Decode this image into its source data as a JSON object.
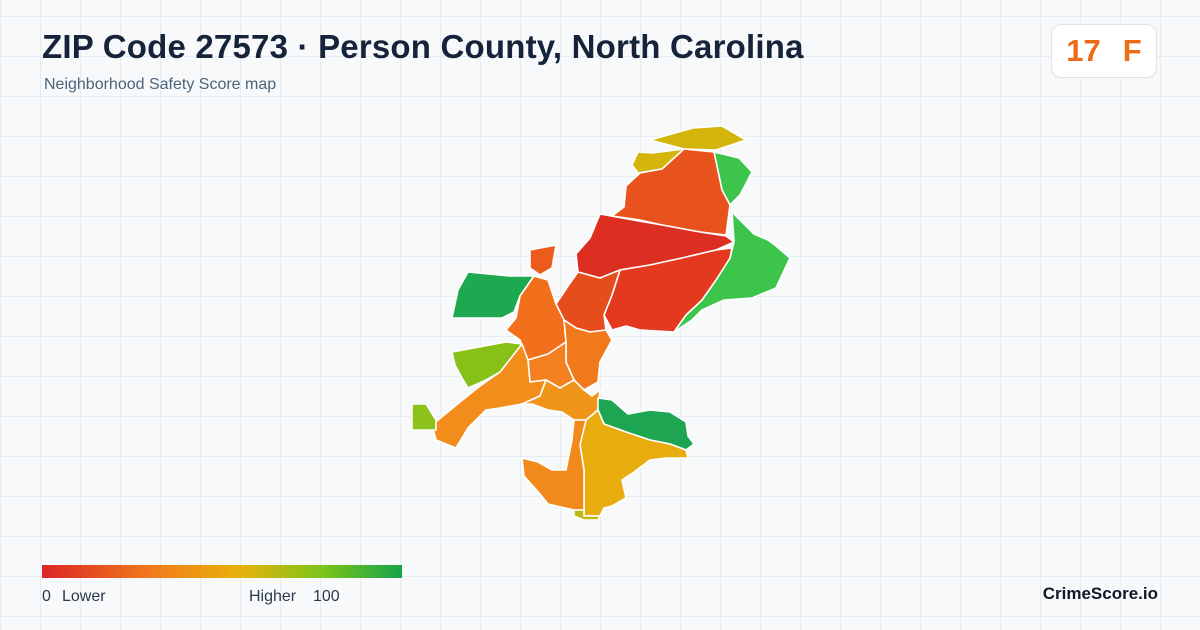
{
  "header": {
    "title": "ZIP Code 27573 · Person County, North Carolina",
    "subtitle": "Neighborhood Safety Score map"
  },
  "score": {
    "value": "17",
    "grade": "F",
    "color": "#ee6a17"
  },
  "map": {
    "regions": [
      {
        "name": "north-tip",
        "score": 52,
        "color": "#d4b50c"
      },
      {
        "name": "northeast-strip",
        "score": 82,
        "color": "#3dc44c"
      },
      {
        "name": "north-upper",
        "score": 16,
        "color": "#e8521c"
      },
      {
        "name": "north-central",
        "score": 5,
        "color": "#dc2f22"
      },
      {
        "name": "east-green",
        "score": 80,
        "color": "#3cc44b"
      },
      {
        "name": "east-central",
        "score": 8,
        "color": "#e2391f"
      },
      {
        "name": "central-small",
        "score": 14,
        "color": "#e54d1d"
      },
      {
        "name": "north-notch",
        "score": 18,
        "color": "#ec5b1c"
      },
      {
        "name": "west-green",
        "score": 92,
        "color": "#1ea850"
      },
      {
        "name": "west-central",
        "score": 22,
        "color": "#f26f1b"
      },
      {
        "name": "west-lime",
        "score": 65,
        "color": "#87c118"
      },
      {
        "name": "downtown-a",
        "score": 24,
        "color": "#f07a1b"
      },
      {
        "name": "downtown-b",
        "score": 28,
        "color": "#f58020"
      },
      {
        "name": "southwest-arm",
        "score": 32,
        "color": "#f28c1a"
      },
      {
        "name": "southwest-tip",
        "score": 62,
        "color": "#8cc21b"
      },
      {
        "name": "south-central",
        "score": 36,
        "color": "#f0941a"
      },
      {
        "name": "southeast-green",
        "score": 90,
        "color": "#1ea551"
      },
      {
        "name": "south-main",
        "score": 44,
        "color": "#e9ac0e"
      },
      {
        "name": "south-left",
        "score": 30,
        "color": "#f18a1b"
      },
      {
        "name": "south-bottom",
        "score": 58,
        "color": "#c0b814"
      }
    ]
  },
  "legend": {
    "low_value": "0",
    "low_label": "Lower",
    "high_label": "Higher",
    "high_value": "100"
  },
  "brand": "CrimeScore.io"
}
